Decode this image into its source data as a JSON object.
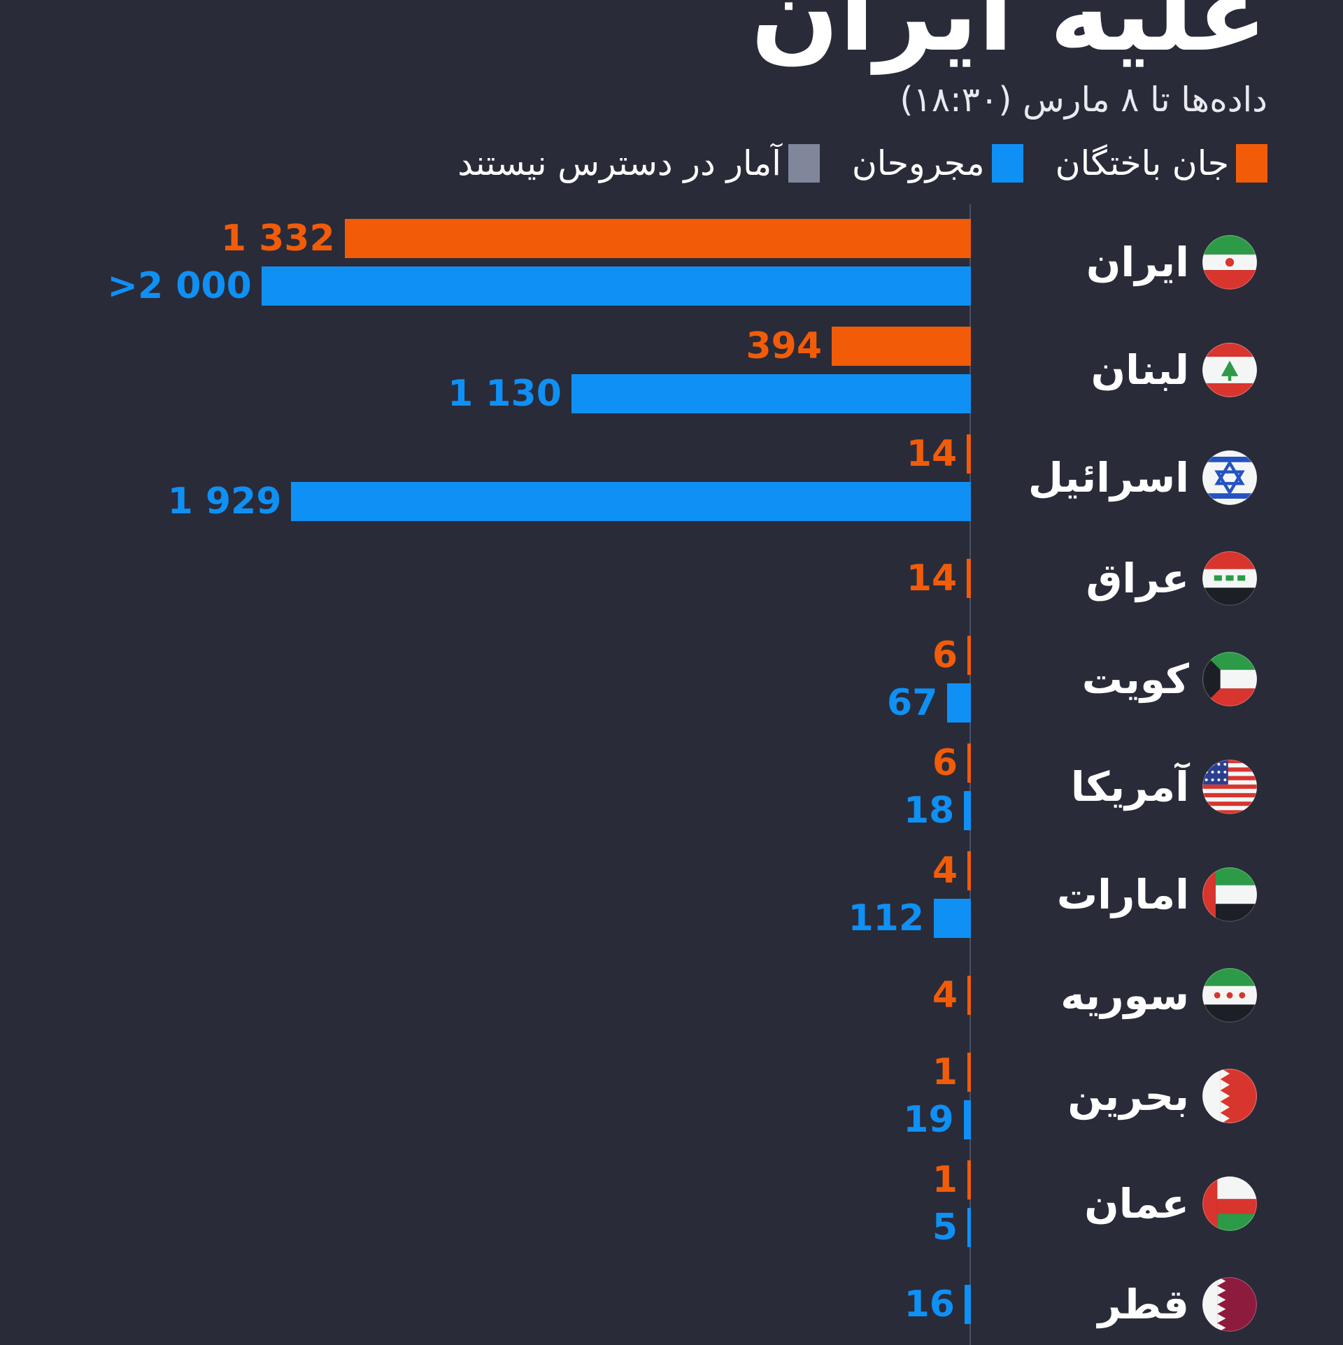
{
  "colors": {
    "background": "#292b39",
    "deaths": "#f25c08",
    "injured": "#0f90f5",
    "no_data": "#81879a",
    "text": "#ffffff",
    "subtitle_text": "#e8eaf0",
    "axis_line": "rgba(144,162,192,0.32)"
  },
  "chart_data": {
    "type": "bar",
    "orientation": "horizontal",
    "direction": "rtl",
    "title": "علیه ایران",
    "title_note": "title partially cropped at top of image",
    "subtitle": "داده‌ها تا ۸ مارس (۱۸:۳۰)",
    "xmax": 2000,
    "grid": false,
    "legend_position": "top",
    "legend": [
      {
        "key": "deaths",
        "label": "جان باختگان",
        "color": "#f25c08"
      },
      {
        "key": "injured",
        "label": "مجروحان",
        "color": "#0f90f5"
      },
      {
        "key": "no_data",
        "label": "آمار در دسترس نیستند",
        "color": "#81879a"
      }
    ],
    "rows": [
      {
        "country": "ایران",
        "flag": "iran",
        "deaths": {
          "value": 1332,
          "label": "1 332",
          "pct": 69.3
        },
        "injured": {
          "value": 2000,
          "label": ">2 000",
          "pct": 78.5,
          "over": true
        }
      },
      {
        "country": "لبنان",
        "flag": "lebanon",
        "deaths": {
          "value": 394,
          "label": "394",
          "pct": 15.4
        },
        "injured": {
          "value": 1130,
          "label": "1 130",
          "pct": 44.2
        }
      },
      {
        "country": "اسرائیل",
        "flag": "israel",
        "deaths": {
          "value": 14,
          "label": "14",
          "pct": 0.45
        },
        "injured": {
          "value": 1929,
          "label": "1 929",
          "pct": 75.2
        }
      },
      {
        "country": "عراق",
        "flag": "iraq",
        "deaths": {
          "value": 14,
          "label": "14",
          "pct": 0.45
        },
        "injured": null
      },
      {
        "country": "کویت",
        "flag": "kuwait",
        "deaths": {
          "value": 6,
          "label": "6",
          "pct": 0.3
        },
        "injured": {
          "value": 67,
          "label": "67",
          "pct": 2.6
        }
      },
      {
        "country": "آمریکا",
        "flag": "usa",
        "deaths": {
          "value": 6,
          "label": "6",
          "pct": 0.3
        },
        "injured": {
          "value": 18,
          "label": "18",
          "pct": 0.75
        }
      },
      {
        "country": "امارات",
        "flag": "uae",
        "deaths": {
          "value": 4,
          "label": "4",
          "pct": 0.25
        },
        "injured": {
          "value": 112,
          "label": "112",
          "pct": 4.1
        }
      },
      {
        "country": "سوریه",
        "flag": "syria",
        "deaths": {
          "value": 4,
          "label": "4",
          "pct": 0.25
        },
        "injured": null
      },
      {
        "country": "بحرین",
        "flag": "bahrain",
        "deaths": {
          "value": 1,
          "label": "1",
          "pct": 0.1
        },
        "injured": {
          "value": 19,
          "label": "19",
          "pct": 0.8
        }
      },
      {
        "country": "عمان",
        "flag": "oman",
        "deaths": {
          "value": 1,
          "label": "1",
          "pct": 0.1
        },
        "injured": {
          "value": 5,
          "label": "5",
          "pct": 0.3
        }
      },
      {
        "country": "قطر",
        "flag": "qatar",
        "deaths": null,
        "injured": {
          "value": 16,
          "label": "16",
          "pct": 0.7
        }
      }
    ]
  }
}
